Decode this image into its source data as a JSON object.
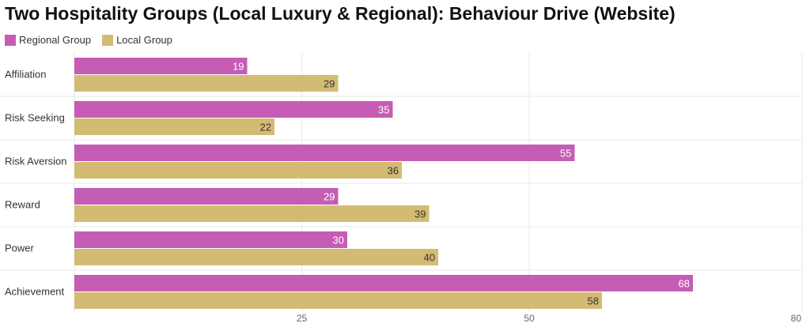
{
  "chart_data": {
    "type": "bar",
    "orientation": "horizontal",
    "title": "Two Hospitality Groups (Local Luxury & Regional): Behaviour Drive (Website)",
    "categories": [
      "Affiliation",
      "Risk Seeking",
      "Risk Aversion",
      "Reward",
      "Power",
      "Achievement"
    ],
    "series": [
      {
        "name": "Regional Group",
        "color": "#c65db4",
        "values": [
          19,
          35,
          55,
          29,
          30,
          68
        ]
      },
      {
        "name": "Local Group",
        "color": "#d4bb73",
        "values": [
          29,
          22,
          36,
          39,
          40,
          58
        ]
      }
    ],
    "xlim": [
      0,
      80
    ],
    "xticks": [
      25,
      50,
      80
    ],
    "grid": true,
    "legend_position": "top-left"
  }
}
